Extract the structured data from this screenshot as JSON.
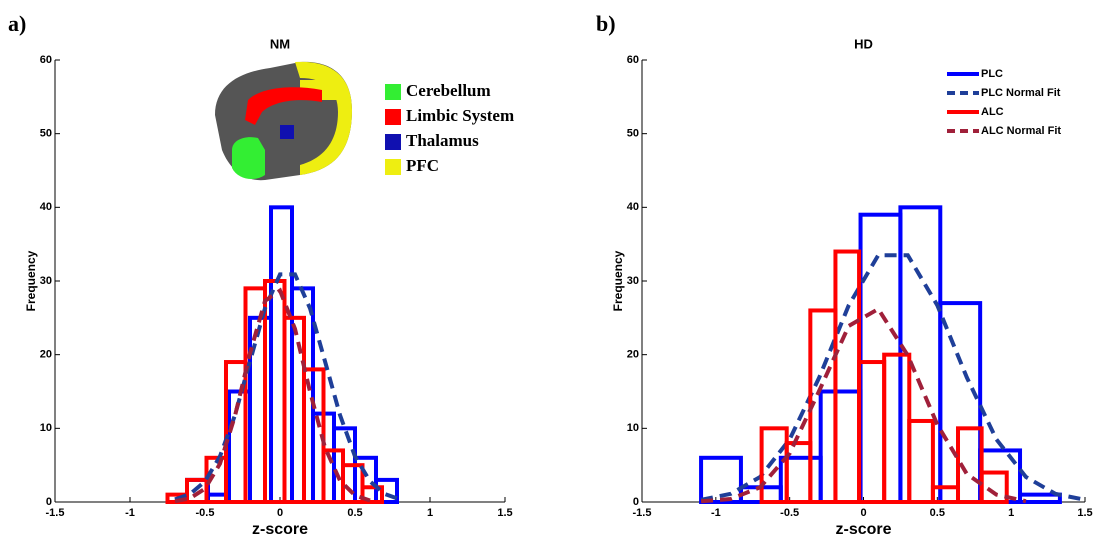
{
  "chart_data": [
    {
      "type": "histogram",
      "panel_label": "a)",
      "title": "NM",
      "xlabel": "z-score",
      "ylabel": "Frequency",
      "xlim": [
        -1.5,
        1.5
      ],
      "xticks": [
        -1.5,
        -1,
        -0.5,
        0,
        0.5,
        1,
        1.5
      ],
      "ylim": [
        0,
        60
      ],
      "yticks": [
        0,
        10,
        20,
        30,
        40,
        50,
        60
      ],
      "series": [
        {
          "type": "histogram",
          "color": "#0000ff",
          "bins": [
            -0.62,
            -0.48,
            -0.34,
            -0.2,
            -0.06,
            0.08,
            0.22,
            0.36,
            0.5,
            0.64,
            0.78
          ],
          "values": [
            3,
            1,
            15,
            25,
            40,
            29,
            12,
            10,
            6,
            3
          ]
        },
        {
          "type": "histogram",
          "color": "#ff0000",
          "bins": [
            -0.75,
            -0.62,
            -0.49,
            -0.36,
            -0.23,
            -0.1,
            0.03,
            0.16,
            0.29,
            0.42,
            0.55,
            0.68
          ],
          "values": [
            1,
            3,
            6,
            19,
            29,
            30,
            25,
            18,
            7,
            5,
            2
          ]
        },
        {
          "type": "line",
          "dashed": true,
          "color": "#1f3f99",
          "x": [
            -0.7,
            -0.6,
            -0.5,
            -0.4,
            -0.3,
            -0.2,
            -0.1,
            0,
            0.1,
            0.2,
            0.3,
            0.4,
            0.5,
            0.6,
            0.7,
            0.8
          ],
          "values": [
            0.35,
            1.07,
            2.8,
            6.2,
            11.8,
            19.1,
            26.3,
            30.9,
            30.9,
            26.3,
            19.1,
            11.8,
            6.2,
            2.8,
            1.07,
            0.35
          ]
        },
        {
          "type": "line",
          "dashed": true,
          "color": "#a0203a",
          "x": [
            -0.7,
            -0.6,
            -0.5,
            -0.4,
            -0.3,
            -0.2,
            -0.1,
            0,
            0.1,
            0.2,
            0.3,
            0.4,
            0.5,
            0.6
          ],
          "values": [
            0.1,
            0.5,
            1.8,
            5.2,
            11.7,
            20.2,
            27.3,
            28.7,
            23.5,
            15,
            7.4,
            2.9,
            0.9,
            0.2
          ]
        }
      ],
      "region_legend": [
        {
          "name": "Cerebellum",
          "color": "#33ee33"
        },
        {
          "name": "Limbic System",
          "color": "#ff0000"
        },
        {
          "name": "Thalamus",
          "color": "#1010b0"
        },
        {
          "name": "PFC",
          "color": "#eeee11"
        }
      ]
    },
    {
      "type": "histogram",
      "panel_label": "b)",
      "title": "HD",
      "xlabel": "z-score",
      "ylabel": "Frequency",
      "xlim": [
        -1.5,
        1.5
      ],
      "xticks": [
        -1.5,
        -1,
        -0.5,
        0,
        0.5,
        1,
        1.5
      ],
      "ylim": [
        0,
        60
      ],
      "yticks": [
        0,
        10,
        20,
        30,
        40,
        50,
        60
      ],
      "series": [
        {
          "name": "PLC",
          "type": "histogram",
          "color": "#0000ff",
          "bins": [
            -1.1,
            -0.83,
            -0.56,
            -0.29,
            -0.02,
            0.25,
            0.52,
            0.79,
            1.06,
            1.33
          ],
          "values": [
            6,
            2,
            6,
            15,
            39,
            40,
            27,
            7,
            1
          ]
        },
        {
          "name": "PLC Normal Fit",
          "type": "line",
          "dashed": true,
          "color": "#1f3f99",
          "x": [
            -1.1,
            -0.9,
            -0.7,
            -0.5,
            -0.3,
            -0.1,
            0.1,
            0.3,
            0.5,
            0.7,
            0.9,
            1.1,
            1.3,
            1.5
          ],
          "values": [
            0.3,
            1.1,
            3.4,
            8.5,
            16.9,
            26.7,
            33.5,
            33.5,
            26.7,
            16.9,
            8.5,
            3.4,
            1.1,
            0.3
          ]
        },
        {
          "name": "ALC",
          "type": "histogram",
          "color": "#ff0000",
          "bins": [
            -0.69,
            -0.52,
            -0.36,
            -0.19,
            -0.03,
            0.14,
            0.31,
            0.47,
            0.64,
            0.8,
            0.97
          ],
          "values": [
            10,
            8,
            26,
            34,
            19,
            20,
            11,
            2,
            10,
            4
          ]
        },
        {
          "name": "ALC Normal Fit",
          "type": "line",
          "dashed": true,
          "color": "#a0203a",
          "x": [
            -1.1,
            -0.9,
            -0.7,
            -0.5,
            -0.3,
            -0.1,
            0.1,
            0.3,
            0.5,
            0.7,
            0.9,
            1.1
          ],
          "values": [
            0.1,
            0.4,
            2,
            6.6,
            15.1,
            23.9,
            26.2,
            19.9,
            10.5,
            3.8,
            1,
            0.1
          ]
        }
      ]
    }
  ]
}
